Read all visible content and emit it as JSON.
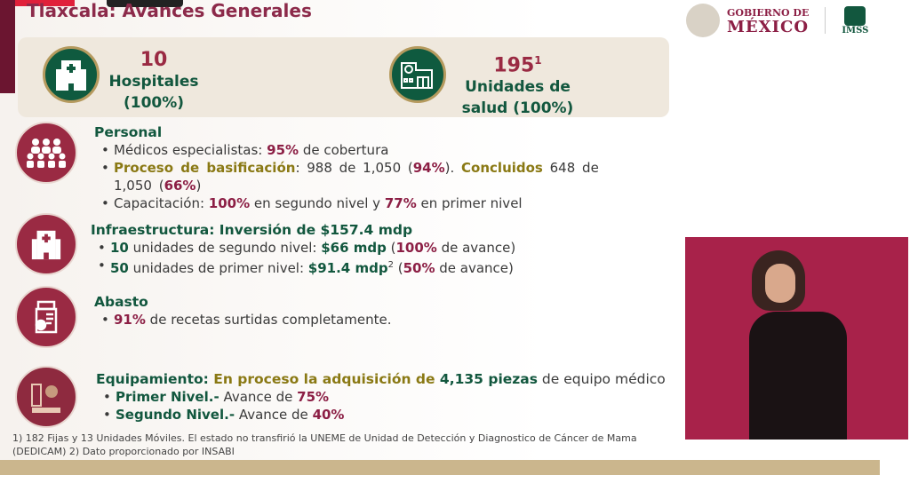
{
  "title": "Tlaxcala: Avances Generales",
  "logos": {
    "gob_line1": "GOBIERNO DE",
    "gob_line2": "MÉXICO",
    "imss": "IMSS"
  },
  "summary": [
    {
      "value": "10",
      "label1": "Hospitales",
      "label2": "(100%)",
      "icon": "hospital-icon"
    },
    {
      "value": "195",
      "sup": "1",
      "label1": "Unidades de",
      "label2": "salud (100%)",
      "icon": "clinic-icon"
    }
  ],
  "personal": {
    "heading": "Personal",
    "b1": {
      "a": "Médicos especialistas: ",
      "b": "95%",
      "c": " de cobertura"
    },
    "b2": {
      "a": "Proceso de basificación",
      "b": ": 988 de 1,050 (",
      "c": "94%",
      "d": "). ",
      "e": "Concluidos",
      "f": " 648 de 1,050 (",
      "g": "66%",
      "h": ")"
    },
    "b3": {
      "a": "Capacitación: ",
      "b": "100%",
      "c": " en segundo nivel y ",
      "d": "77%",
      "e": " en primer nivel"
    }
  },
  "infra": {
    "heading": "Infraestructura: Inversión de $157.4 mdp",
    "b1": {
      "a": "10",
      "b": " unidades de segundo nivel: ",
      "c": "$66 mdp",
      "d": " (",
      "e": "100%",
      "f": " de avance)"
    },
    "b2": {
      "a": "50",
      "b": " unidades de primer nivel: ",
      "c": "$91.4 mdp",
      "sup": "2",
      "d": " (",
      "e": "50%",
      "f": " de avance)"
    }
  },
  "abasto": {
    "heading": "Abasto",
    "b1": {
      "a": "91%",
      "b": " de recetas surtidas completamente."
    }
  },
  "equip": {
    "h1": "Equipamiento: ",
    "h2": "En proceso la adquisición de ",
    "h3": "4,135 piezas",
    "h4": " de equipo médico",
    "b1": {
      "a": "Primer Nivel.-",
      "b": " Avance de ",
      "c": "75%"
    },
    "b2": {
      "a": "Segundo Nivel.-",
      "b": " Avance de ",
      "c": "40%"
    }
  },
  "footnote": "1) 182 Fijas y 13 Unidades Móviles. El estado no transfirió la UNEME de Unidad de Detección y Diagnostico de Cáncer de Mama (DEDICAM)  2) Dato proporcionado por INSABI",
  "colors": {
    "green": "#12573e",
    "maroon": "#8c1f45",
    "gold": "#8a7914",
    "video_bg": "#a8224a"
  }
}
